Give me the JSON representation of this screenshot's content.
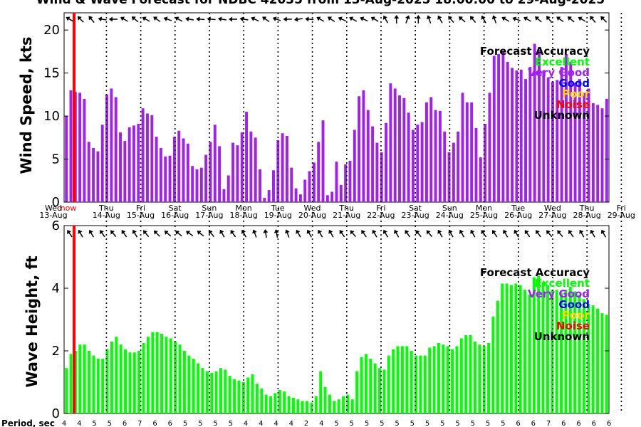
{
  "chart_data": [
    {
      "type": "bar",
      "title": "Wind & Wave Forecast for NDBC 42035 from 13-Aug-2025 18:00:00 to 29-Aug-2025",
      "ylabel": "Wind Speed, kts",
      "ylim": [
        0,
        22
      ],
      "yticks": [
        "0",
        "5",
        "10",
        "15",
        "20"
      ],
      "color": "#a020f0",
      "values": [
        10.0,
        13.0,
        12.8,
        12.7,
        12.0,
        7.0,
        6.3,
        5.9,
        9.0,
        12.5,
        13.2,
        12.2,
        8.1,
        7.1,
        8.7,
        8.9,
        9.1,
        10.9,
        10.3,
        10.1,
        7.6,
        6.3,
        5.3,
        5.4,
        7.6,
        8.3,
        7.4,
        6.8,
        4.2,
        3.8,
        4.0,
        5.5,
        7.0,
        9.0,
        6.5,
        1.5,
        3.1,
        6.9,
        6.6,
        8.1,
        10.5,
        8.2,
        7.5,
        3.8,
        0.5,
        1.4,
        3.7,
        7.2,
        8.0,
        7.7,
        4.0,
        1.6,
        0.9,
        2.6,
        3.6,
        4.6,
        7.0,
        9.5,
        0.8,
        1.2,
        4.7,
        2.0,
        4.4,
        4.8,
        8.4,
        12.3,
        13.0,
        10.7,
        8.8,
        6.9,
        5.8,
        9.2,
        13.8,
        13.2,
        12.4,
        12.1,
        10.4,
        8.4,
        9.0,
        9.3,
        11.6,
        12.2,
        10.7,
        10.6,
        8.2,
        5.8,
        6.9,
        8.2,
        12.7,
        11.6,
        11.6,
        8.6,
        5.2,
        9.1,
        12.7,
        17.0,
        17.2,
        17.6,
        16.3,
        15.6,
        15.3,
        15.4,
        14.3,
        15.7,
        18.4,
        17.7,
        15.3,
        14.5,
        14.0,
        14.2,
        15.7,
        17.2,
        16.3,
        13.9,
        14.3,
        12.7,
        13.2,
        11.5,
        11.3,
        10.9,
        12.0
      ]
    },
    {
      "type": "bar",
      "ylabel": "Wave Height, ft",
      "ylim": [
        0,
        6
      ],
      "yticks": [
        "0",
        "2",
        "4",
        "6"
      ],
      "color": "#00ff00",
      "values": [
        1.45,
        1.9,
        2.0,
        2.2,
        2.2,
        2.0,
        1.85,
        1.75,
        1.75,
        2.05,
        2.3,
        2.45,
        2.2,
        2.05,
        1.95,
        1.95,
        2.0,
        2.25,
        2.45,
        2.6,
        2.6,
        2.55,
        2.45,
        2.4,
        2.3,
        2.2,
        2.0,
        1.85,
        1.75,
        1.6,
        1.45,
        1.35,
        1.3,
        1.35,
        1.45,
        1.4,
        1.2,
        1.1,
        1.05,
        1.0,
        1.15,
        1.25,
        0.95,
        0.8,
        0.6,
        0.55,
        0.65,
        0.75,
        0.7,
        0.55,
        0.5,
        0.45,
        0.4,
        0.4,
        0.35,
        0.55,
        1.35,
        0.85,
        0.6,
        0.4,
        0.45,
        0.55,
        0.6,
        0.45,
        1.35,
        1.8,
        1.9,
        1.75,
        1.6,
        1.45,
        1.4,
        1.85,
        2.05,
        2.15,
        2.15,
        2.15,
        2.0,
        1.85,
        1.85,
        1.85,
        2.1,
        2.15,
        2.25,
        2.2,
        2.15,
        2.05,
        2.15,
        2.4,
        2.5,
        2.5,
        2.3,
        2.2,
        2.15,
        2.25,
        3.1,
        3.6,
        4.15,
        4.15,
        4.1,
        4.15,
        4.1,
        3.95,
        3.8,
        4.35,
        4.4,
        4.2,
        4.1,
        3.95,
        3.95,
        3.85,
        3.95,
        4.05,
        3.9,
        3.8,
        3.65,
        3.5,
        3.45,
        3.35,
        3.2,
        3.15
      ]
    }
  ],
  "day_labels": [
    {
      "day": "Wed",
      "date": "13-Aug"
    },
    {
      "day": "Thu",
      "date": "14-Aug"
    },
    {
      "day": "Fri",
      "date": "15-Aug"
    },
    {
      "day": "Sat",
      "date": "16-Aug"
    },
    {
      "day": "Sun",
      "date": "17-Aug"
    },
    {
      "day": "Mon",
      "date": "18-Aug"
    },
    {
      "day": "Tue",
      "date": "19-Aug"
    },
    {
      "day": "Wed",
      "date": "20-Aug"
    },
    {
      "day": "Thu",
      "date": "21-Aug"
    },
    {
      "day": "Fri",
      "date": "22-Aug"
    },
    {
      "day": "Sat",
      "date": "23-Aug"
    },
    {
      "day": "Sun",
      "date": "24-Aug"
    },
    {
      "day": "Mon",
      "date": "25-Aug"
    },
    {
      "day": "Tue",
      "date": "26-Aug"
    },
    {
      "day": "Wed",
      "date": "27-Aug"
    },
    {
      "day": "Thu",
      "date": "28-Aug"
    },
    {
      "day": "Fri",
      "date": "29-Aug"
    }
  ],
  "now_label": "now",
  "legend": {
    "title": "Forecast Accuracy",
    "items": [
      {
        "label": "Excellent",
        "color": "#00ff00"
      },
      {
        "label": "Very Good",
        "color": "#a020f0"
      },
      {
        "label": "Good",
        "color": "#0000ff"
      },
      {
        "label": "Poor",
        "color": "#ffd700"
      },
      {
        "label": "Noise",
        "color": "#ff0000"
      },
      {
        "label": "Unknown",
        "color": "#000000"
      }
    ]
  },
  "period_label": "Period, sec",
  "periods": [
    "4",
    "4",
    "5",
    "5",
    "6",
    "7",
    "6",
    "6",
    "5",
    "5",
    "5",
    "5",
    "4",
    "4",
    "4",
    "4",
    "2",
    "4",
    "5",
    "5",
    "5",
    "5",
    "5",
    "5",
    "5",
    "5",
    "5",
    "5",
    "5",
    "5",
    "6",
    "6",
    "7",
    "6",
    "6",
    "6",
    "6"
  ],
  "wind_arrow_angles": [
    120,
    135,
    140,
    100,
    90,
    120,
    130,
    120,
    125,
    110,
    120,
    100,
    95,
    95,
    100,
    90,
    100,
    115,
    125,
    110,
    90,
    80,
    95,
    120,
    125,
    115,
    120,
    115,
    120,
    150,
    180,
    200,
    180,
    160,
    150,
    140,
    130,
    140,
    150,
    160,
    120,
    110,
    120,
    130,
    140,
    125,
    130,
    120,
    140,
    135
  ],
  "wave_arrow_angles": [
    145,
    150,
    150,
    145,
    140,
    145,
    150,
    140,
    135,
    130,
    130,
    125,
    130,
    140,
    150,
    145,
    150,
    160,
    170,
    170,
    160,
    150,
    150,
    150,
    150,
    145,
    140,
    145,
    150,
    150,
    150,
    145,
    140,
    140,
    150,
    150,
    150,
    150,
    145,
    145,
    150,
    150,
    145,
    145,
    140,
    140,
    145,
    150,
    150,
    150
  ]
}
